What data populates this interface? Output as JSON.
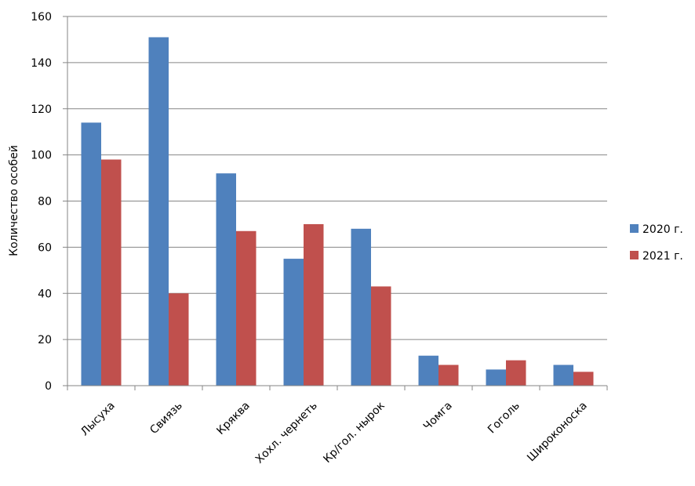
{
  "chart_data": {
    "type": "bar",
    "title": "",
    "xlabel": "",
    "ylabel": "Количество особей",
    "ylim": [
      0,
      160
    ],
    "yticks": [
      0,
      20,
      40,
      60,
      80,
      100,
      120,
      140,
      160
    ],
    "grid": true,
    "legend_position": "right",
    "categories": [
      "Лысуха",
      "Свиязь",
      "Кряква",
      "Хохл. чернеть",
      "Кр/гол. нырок",
      "Чомга",
      "Гоголь",
      "Широконоска"
    ],
    "series": [
      {
        "name": "2020 г.",
        "color": "#4F81BD",
        "values": [
          114,
          151,
          92,
          55,
          68,
          13,
          7,
          9
        ]
      },
      {
        "name": "2021 г.",
        "color": "#C0504D",
        "values": [
          98,
          40,
          67,
          70,
          43,
          9,
          11,
          6
        ]
      }
    ]
  }
}
